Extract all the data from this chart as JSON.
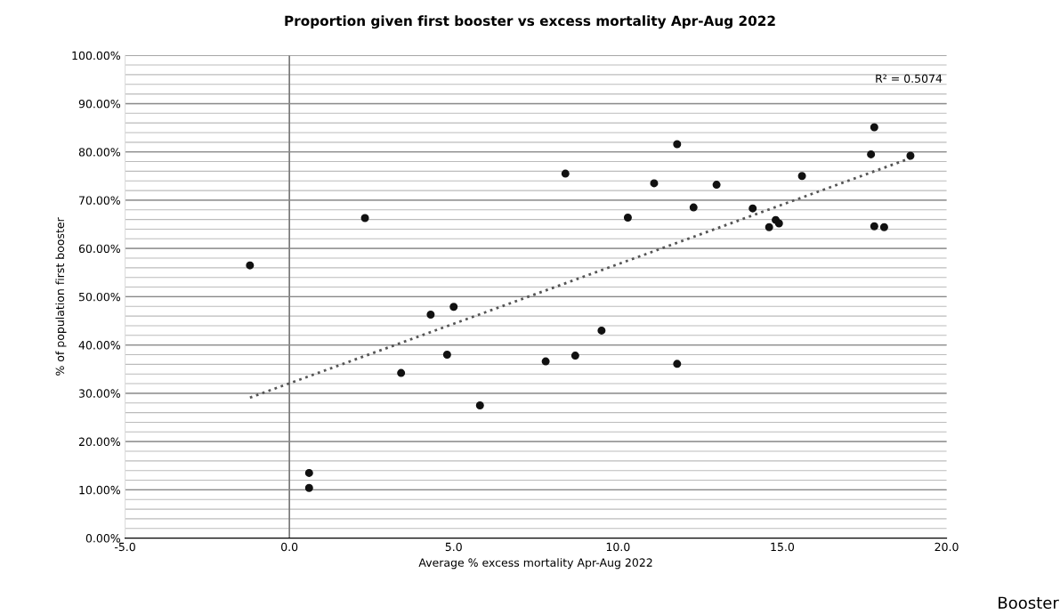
{
  "chart_data": {
    "type": "scatter",
    "title": "Proportion given first booster vs excess mortality Apr-Aug 2022",
    "xlabel": "Average % excess mortality Apr-Aug 2022",
    "ylabel": "% of population first booster",
    "xlim": [
      -5,
      20
    ],
    "xticks": [
      {
        "value": -5,
        "label": "-5.0"
      },
      {
        "value": 0,
        "label": "0.0"
      },
      {
        "value": 5,
        "label": "5.0"
      },
      {
        "value": 10,
        "label": "10.0"
      },
      {
        "value": 15,
        "label": "15.0"
      },
      {
        "value": 20,
        "label": "20.0"
      }
    ],
    "ylim": [
      0,
      100
    ],
    "yticks": [
      {
        "value": 0,
        "label": "0.00%"
      },
      {
        "value": 10,
        "label": "10.00%"
      },
      {
        "value": 20,
        "label": "20.00%"
      },
      {
        "value": 30,
        "label": "30.00%"
      },
      {
        "value": 40,
        "label": "40.00%"
      },
      {
        "value": 50,
        "label": "50.00%"
      },
      {
        "value": 60,
        "label": "60.00%"
      },
      {
        "value": 70,
        "label": "70.00%"
      },
      {
        "value": 80,
        "label": "80.00%"
      },
      {
        "value": 90,
        "label": "90.00%"
      },
      {
        "value": 100,
        "label": "100.00%"
      }
    ],
    "grid": "y",
    "legend": false,
    "marker": "circle",
    "series": [
      {
        "color": "#111111",
        "x": [
          -1.2,
          2.3,
          8.4,
          4.3,
          5.0,
          11.8,
          11.1,
          13.0,
          10.3,
          12.3,
          14.1,
          15.6,
          17.8,
          17.7,
          18.9,
          14.8,
          14.9,
          14.6,
          17.8,
          18.1,
          4.8,
          3.4,
          5.8,
          7.8,
          8.7,
          9.5,
          11.8,
          0.6,
          0.6
        ],
        "values": [
          56.5,
          66.3,
          75.5,
          46.3,
          47.9,
          81.6,
          73.5,
          73.2,
          66.4,
          68.5,
          68.3,
          75.0,
          85.1,
          79.5,
          79.2,
          65.9,
          65.2,
          64.4,
          64.6,
          64.4,
          38.0,
          34.2,
          27.5,
          36.6,
          37.8,
          43.0,
          36.1,
          13.5,
          10.4
        ]
      },
      {
        "type": "line",
        "color": "#555555",
        "line_style": "dotted",
        "marker": "none",
        "x": [
          -1.2,
          18.9
        ],
        "values": [
          29.1,
          78.7
        ]
      }
    ],
    "annotations": [
      "R² = 0.5074",
      "Booster"
    ]
  }
}
